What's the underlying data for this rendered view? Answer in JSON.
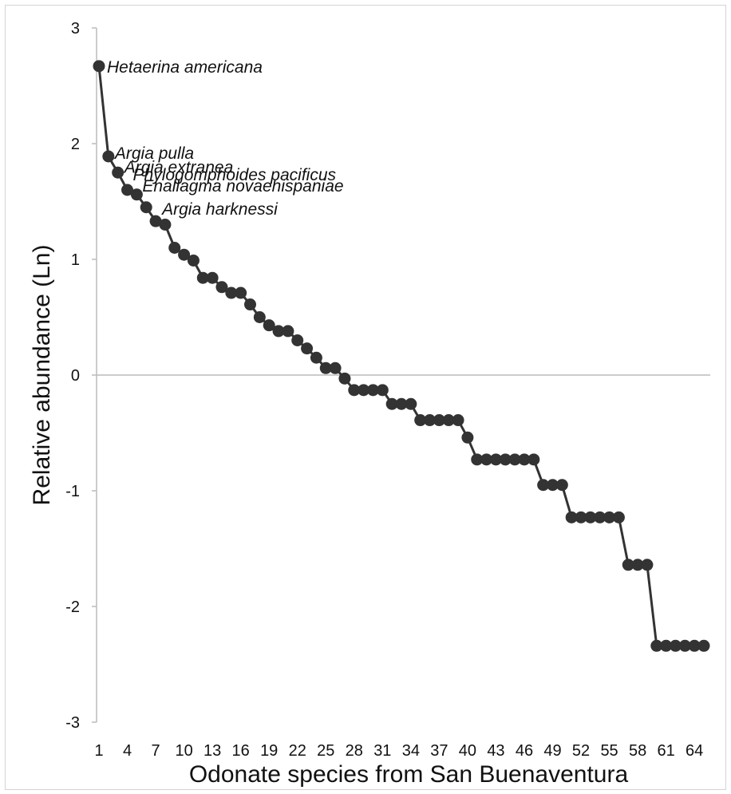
{
  "chart_data": {
    "type": "line",
    "title": "",
    "xlabel": "Odonate species from San Buenaventura",
    "ylabel": "Relative abundance (Ln)",
    "ylim": [
      -3,
      3
    ],
    "xlim": [
      1,
      65
    ],
    "yticks": [
      "3",
      "2",
      "1",
      "0",
      "-1",
      "-2",
      "-3"
    ],
    "xticks": [
      "1",
      "4",
      "7",
      "10",
      "13",
      "16",
      "19",
      "22",
      "25",
      "28",
      "31",
      "34",
      "37",
      "40",
      "43",
      "46",
      "49",
      "52",
      "55",
      "58",
      "61",
      "64"
    ],
    "grid": false,
    "legend": "none",
    "color": "#333333",
    "series": [
      {
        "x": [
          1,
          2,
          3,
          4,
          5,
          6,
          7,
          8,
          9,
          10,
          11,
          12,
          13,
          14,
          15,
          16,
          17,
          18,
          19,
          20,
          21,
          22,
          23,
          24,
          25,
          26,
          27,
          28,
          29,
          30,
          31,
          32,
          33,
          34,
          35,
          36,
          37,
          38,
          39,
          40,
          41,
          42,
          43,
          44,
          45,
          46,
          47,
          48,
          49,
          50,
          51,
          52,
          53,
          54,
          55,
          56,
          57,
          58,
          59,
          60,
          61,
          62,
          63,
          64,
          65
        ],
        "values": [
          2.67,
          1.89,
          1.75,
          1.6,
          1.56,
          1.45,
          1.33,
          1.3,
          1.1,
          1.04,
          0.99,
          0.84,
          0.84,
          0.76,
          0.71,
          0.71,
          0.61,
          0.5,
          0.43,
          0.38,
          0.38,
          0.3,
          0.23,
          0.15,
          0.06,
          0.06,
          -0.03,
          -0.13,
          -0.13,
          -0.13,
          -0.13,
          -0.25,
          -0.25,
          -0.25,
          -0.39,
          -0.39,
          -0.39,
          -0.39,
          -0.39,
          -0.54,
          -0.73,
          -0.73,
          -0.73,
          -0.73,
          -0.73,
          -0.73,
          -0.73,
          -0.95,
          -0.95,
          -0.95,
          -1.23,
          -1.23,
          -1.23,
          -1.23,
          -1.23,
          -1.23,
          -1.64,
          -1.64,
          -1.64,
          -2.34,
          -2.34,
          -2.34,
          -2.34,
          -2.34,
          -2.34
        ]
      }
    ],
    "annotations": [
      {
        "text": "Hetaerina americana",
        "x": 1
      },
      {
        "text": "Argia pulla",
        "x": 2
      },
      {
        "text": "Argia extranea",
        "x": 3
      },
      {
        "text": "Phylogomphoides pacificus",
        "x": 4
      },
      {
        "text": "Enallagma novaehispaniae",
        "x": 5
      },
      {
        "text": "Argia harknessi",
        "x": 7
      }
    ]
  }
}
